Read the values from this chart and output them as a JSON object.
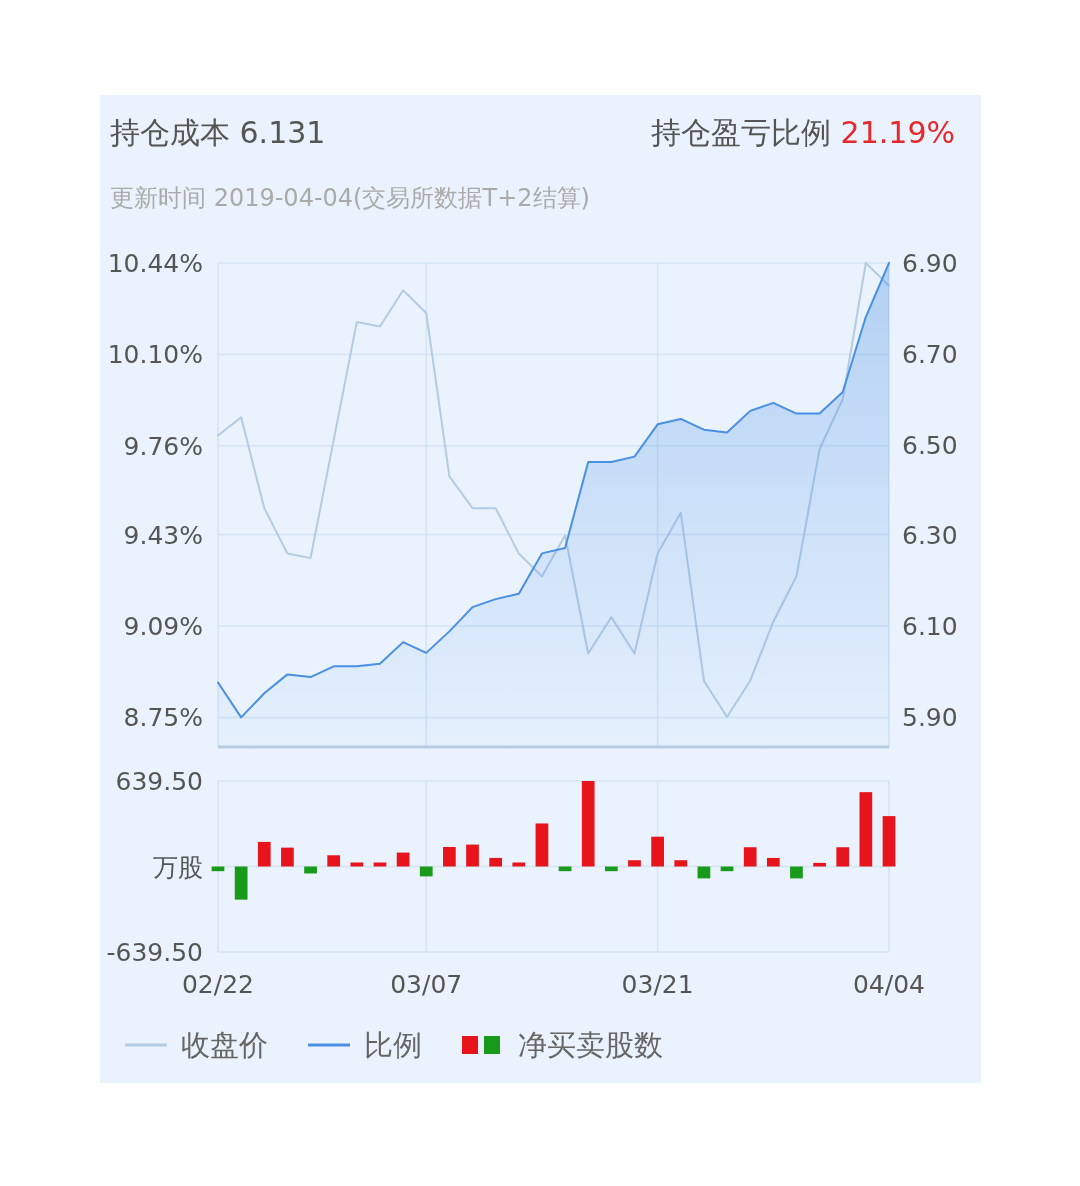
{
  "chart_data": [
    {
      "type": "line",
      "title": "持仓成本 6.131",
      "subtitle": "更新时间 2019-04-04(交易所数据T+2结算)",
      "annotations": [
        "持仓盈亏比例",
        "21.19%"
      ],
      "categories": [
        null,
        null,
        null,
        null,
        null,
        null,
        null,
        null,
        null,
        null,
        null,
        null,
        null,
        null,
        null,
        null,
        null,
        null,
        null,
        null,
        null,
        null,
        null,
        null,
        null,
        null,
        null,
        null,
        null,
        null
      ],
      "series": [
        {
          "name": "收盘价",
          "axis": "y2",
          "color": "#b4cbe4",
          "values": [
            6.52,
            6.56,
            6.36,
            6.26,
            6.25,
            6.51,
            6.77,
            6.76,
            6.84,
            6.79,
            6.43,
            6.36,
            6.36,
            6.26,
            6.21,
            6.3,
            6.04,
            6.12,
            6.04,
            6.26,
            6.35,
            5.98,
            5.9,
            5.98,
            6.11,
            6.21,
            6.49,
            6.6,
            6.9,
            6.85
          ]
        },
        {
          "name": "比例",
          "type": "area",
          "color": "#4a90e2",
          "values": [
            8.88,
            8.75,
            8.84,
            8.91,
            8.9,
            8.94,
            8.94,
            8.95,
            9.03,
            8.99,
            9.07,
            9.16,
            9.19,
            9.21,
            9.36,
            9.38,
            9.7,
            9.7,
            9.72,
            9.84,
            9.86,
            9.82,
            9.81,
            9.89,
            9.92,
            9.88,
            9.88,
            9.96,
            10.24,
            10.44
          ]
        }
      ],
      "ylim": [
        8.64,
        10.44
      ],
      "yticks": [
        {
          "value": 10.44,
          "label": "10.44%"
        },
        {
          "value": 10.1,
          "label": "10.10%"
        },
        {
          "value": 9.76,
          "label": "9.76%"
        },
        {
          "value": 9.43,
          "label": "9.43%"
        },
        {
          "value": 9.09,
          "label": "9.09%"
        },
        {
          "value": 8.75,
          "label": "8.75%"
        }
      ],
      "y2lim": [
        5.834,
        6.9
      ],
      "y2ticks": [
        {
          "value": 6.9,
          "label": "6.90"
        },
        {
          "value": 6.7,
          "label": "6.70"
        },
        {
          "value": 6.5,
          "label": "6.50"
        },
        {
          "value": 6.3,
          "label": "6.30"
        },
        {
          "value": 6.1,
          "label": "6.10"
        },
        {
          "value": 5.9,
          "label": "5.90"
        }
      ],
      "tick_labels": "y",
      "grid": true,
      "legend": "bottom"
    },
    {
      "type": "bar",
      "categories": [
        "02/22",
        null,
        null,
        null,
        null,
        null,
        null,
        null,
        null,
        "03/07",
        null,
        null,
        null,
        null,
        null,
        null,
        null,
        null,
        null,
        "03/21",
        null,
        null,
        null,
        null,
        null,
        null,
        null,
        null,
        null,
        "04/04"
      ],
      "series": [
        {
          "name": "净买卖股数",
          "colors": [
            "#1a9a1a",
            "#1a9a1a",
            "#e8141c",
            "#e8141c",
            "#1a9a1a",
            "#e8141c",
            "#e8141c",
            "#e8141c",
            "#e8141c",
            "#1a9a1a",
            "#e8141c",
            "#e8141c",
            "#e8141c",
            "#e8141c",
            "#e8141c",
            "#1a9a1a",
            "#e8141c",
            "#1a9a1a",
            "#e8141c",
            "#e8141c",
            "#e8141c",
            "#1a9a1a",
            "#1a9a1a",
            "#e8141c",
            "#e8141c",
            "#1a9a1a",
            "#e8141c",
            "#e8141c",
            "#e8141c",
            "#e8141c"
          ],
          "values": [
            -35,
            -248,
            184,
            141,
            -52,
            84,
            30,
            30,
            104,
            -74,
            146,
            164,
            64,
            30,
            322,
            -35,
            639.5,
            -35,
            47,
            223,
            47,
            -89,
            -35,
            144,
            64,
            -89,
            27,
            144,
            556,
            377
          ]
        }
      ],
      "ylim": [
        -639.5,
        639.5
      ],
      "yticks": [
        {
          "value": 639.5,
          "label": "639.50"
        },
        {
          "value": 0,
          "label": "万股"
        },
        {
          "value": -639.5,
          "label": "-639.50"
        }
      ],
      "grid": true,
      "legend": "bottom"
    }
  ]
}
